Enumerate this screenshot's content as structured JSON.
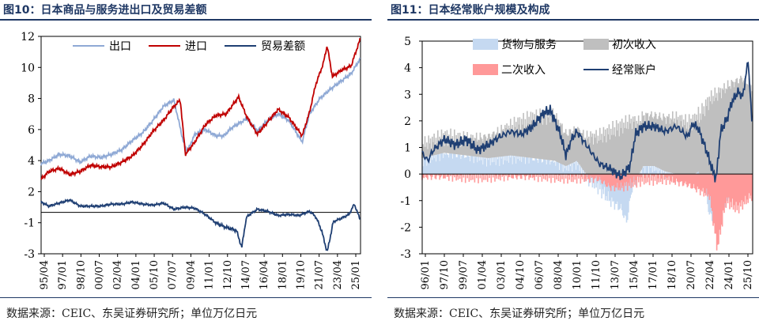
{
  "charts": [
    {
      "fig_title": "图10：日本商品与服务进出口及贸易差额",
      "source": "数据来源：CEIC、东吴证券研究所；单位万亿日元",
      "chart_data": {
        "type": "line",
        "title": "图10：日本商品与服务进出口及贸易差额",
        "xlabel": "",
        "ylabel": "",
        "ylim": [
          -3,
          12
        ],
        "y_ticks": [
          -3,
          -1,
          2,
          4,
          6,
          8,
          10,
          12
        ],
        "y_tick_values": [
          -3,
          -1,
          2,
          4,
          6,
          8,
          10,
          12
        ],
        "x_ticks": [
          "95/04",
          "97/01",
          "98/10",
          "00/07",
          "02/04",
          "04/01",
          "05/10",
          "07/07",
          "09/04",
          "11/01",
          "12/10",
          "14/07",
          "16/04",
          "18/01",
          "19/10",
          "21/07",
          "23/04",
          "25/01"
        ],
        "x_range": [
          1995.25,
          2025.9
        ],
        "legend_position": "top",
        "series": [
          {
            "name": "出口",
            "color": "#8fa9d5",
            "points": [
              [
                1995.25,
                3.8
              ],
              [
                1996,
                4.0
              ],
              [
                1997,
                4.4
              ],
              [
                1998,
                4.3
              ],
              [
                1999,
                3.9
              ],
              [
                2000,
                4.3
              ],
              [
                2001,
                4.2
              ],
              [
                2002,
                4.4
              ],
              [
                2003,
                4.7
              ],
              [
                2004,
                5.3
              ],
              [
                2005,
                5.8
              ],
              [
                2006,
                6.6
              ],
              [
                2007,
                7.5
              ],
              [
                2008,
                7.9
              ],
              [
                2008.9,
                5.2
              ],
              [
                2009.3,
                4.6
              ],
              [
                2010,
                5.7
              ],
              [
                2011,
                6.0
              ],
              [
                2012,
                5.6
              ],
              [
                2012.8,
                5.6
              ],
              [
                2013.5,
                6.1
              ],
              [
                2014.5,
                6.5
              ],
              [
                2015,
                6.7
              ],
              [
                2016,
                5.9
              ],
              [
                2017,
                6.6
              ],
              [
                2018,
                7.0
              ],
              [
                2019,
                6.6
              ],
              [
                2020.3,
                5.2
              ],
              [
                2021,
                7.0
              ],
              [
                2022,
                8.0
              ],
              [
                2023,
                8.6
              ],
              [
                2024,
                9.1
              ],
              [
                2025,
                9.6
              ],
              [
                2025.9,
                10.6
              ]
            ]
          },
          {
            "name": "进口",
            "color": "#c00000",
            "points": [
              [
                1995.25,
                2.8
              ],
              [
                1996,
                3.3
              ],
              [
                1997,
                3.5
              ],
              [
                1998,
                3.1
              ],
              [
                1999,
                3.3
              ],
              [
                2000,
                3.7
              ],
              [
                2001,
                3.6
              ],
              [
                2002,
                3.6
              ],
              [
                2003,
                3.9
              ],
              [
                2004,
                4.3
              ],
              [
                2005,
                5.0
              ],
              [
                2006,
                5.9
              ],
              [
                2007,
                6.6
              ],
              [
                2008,
                7.5
              ],
              [
                2008.6,
                7.9
              ],
              [
                2009.1,
                4.4
              ],
              [
                2010,
                5.2
              ],
              [
                2011,
                6.3
              ],
              [
                2012,
                6.9
              ],
              [
                2013,
                7.0
              ],
              [
                2014.2,
                8.1
              ],
              [
                2015,
                6.8
              ],
              [
                2016,
                5.7
              ],
              [
                2017,
                6.5
              ],
              [
                2018,
                7.3
              ],
              [
                2019,
                6.8
              ],
              [
                2020.3,
                5.6
              ],
              [
                2021,
                7.1
              ],
              [
                2021.6,
                8.9
              ],
              [
                2022.3,
                10.2
              ],
              [
                2022.7,
                11.4
              ],
              [
                2023.2,
                9.4
              ],
              [
                2024,
                9.8
              ],
              [
                2025,
                10.1
              ],
              [
                2025.9,
                11.9
              ]
            ]
          },
          {
            "name": "贸易差额",
            "color": "#1f3f73",
            "points": [
              [
                1995.25,
                1.0
              ],
              [
                1996,
                0.6
              ],
              [
                1997,
                0.9
              ],
              [
                1998,
                1.2
              ],
              [
                1999,
                0.6
              ],
              [
                2000,
                0.6
              ],
              [
                2001,
                0.6
              ],
              [
                2002,
                0.8
              ],
              [
                2003,
                0.8
              ],
              [
                2004,
                1.0
              ],
              [
                2005,
                0.8
              ],
              [
                2006,
                0.7
              ],
              [
                2007,
                0.9
              ],
              [
                2008,
                0.3
              ],
              [
                2009,
                0.5
              ],
              [
                2010,
                0.4
              ],
              [
                2011,
                -0.2
              ],
              [
                2012,
                -1.0
              ],
              [
                2013,
                -1.3
              ],
              [
                2014,
                -1.5
              ],
              [
                2014.5,
                -2.6
              ],
              [
                2015,
                -0.4
              ],
              [
                2016,
                0.3
              ],
              [
                2017,
                0.1
              ],
              [
                2018,
                -0.3
              ],
              [
                2019,
                -0.2
              ],
              [
                2020,
                -0.3
              ],
              [
                2021,
                0.1
              ],
              [
                2021.5,
                -0.3
              ],
              [
                2022.2,
                -1.6
              ],
              [
                2022.7,
                -2.9
              ],
              [
                2023.3,
                -0.9
              ],
              [
                2024,
                -0.6
              ],
              [
                2024.8,
                -0.2
              ],
              [
                2025.3,
                0.8
              ],
              [
                2025.9,
                -0.8
              ]
            ]
          }
        ]
      }
    },
    {
      "fig_title": "图11：日本经常账户规模及构成",
      "source": "数据来源：CEIC、东吴证券研究所；单位万亿日元",
      "chart_data": {
        "type": "area",
        "title": "图11：日本经常账户规模及构成",
        "xlabel": "",
        "ylabel": "",
        "ylim": [
          -3,
          5
        ],
        "y_ticks": [
          -3,
          -2,
          -1,
          0,
          1,
          2,
          3,
          4,
          5
        ],
        "x_ticks": [
          "96/01",
          "97/10",
          "99/07",
          "01/04",
          "03/01",
          "04/10",
          "06/07",
          "08/04",
          "10/01",
          "11/10",
          "13/07",
          "15/04",
          "17/01",
          "18/10",
          "20/07",
          "22/04",
          "24/01",
          "25/10"
        ],
        "x_range": [
          1996.0,
          2025.9
        ],
        "legend_position": "top",
        "series": [
          {
            "name": "货物与服务",
            "color": "#c5d9f1",
            "kind": "bar",
            "points": [
              [
                1996,
                0.6
              ],
              [
                1998,
                0.8
              ],
              [
                2000,
                0.7
              ],
              [
                2002,
                0.6
              ],
              [
                2004,
                0.7
              ],
              [
                2006,
                0.6
              ],
              [
                2008,
                0.5
              ],
              [
                2009,
                0.3
              ],
              [
                2010,
                0.5
              ],
              [
                2011,
                -0.1
              ],
              [
                2012,
                -0.5
              ],
              [
                2013,
                -1.0
              ],
              [
                2014,
                -1.3
              ],
              [
                2014.5,
                -1.8
              ],
              [
                2015,
                -0.5
              ],
              [
                2016,
                0.3
              ],
              [
                2017,
                0.3
              ],
              [
                2018,
                0.1
              ],
              [
                2019,
                0.0
              ],
              [
                2020,
                -0.2
              ],
              [
                2021,
                0.1
              ],
              [
                2021.5,
                -0.4
              ],
              [
                2022,
                -1.5
              ],
              [
                2022.7,
                -2.0
              ],
              [
                2023.2,
                -1.2
              ],
              [
                2024,
                -0.6
              ],
              [
                2025,
                -0.3
              ],
              [
                2025.9,
                -0.2
              ]
            ]
          },
          {
            "name": "初次收入",
            "color": "#bfbfbf",
            "kind": "bar",
            "points": [
              [
                1996,
                0.5
              ],
              [
                1998,
                0.6
              ],
              [
                2000,
                0.6
              ],
              [
                2002,
                0.8
              ],
              [
                2004,
                1.1
              ],
              [
                2006,
                1.5
              ],
              [
                2008,
                1.7
              ],
              [
                2009,
                1.2
              ],
              [
                2010,
                1.2
              ],
              [
                2011,
                1.4
              ],
              [
                2012,
                1.4
              ],
              [
                2013,
                1.6
              ],
              [
                2014,
                1.8
              ],
              [
                2015,
                2.0
              ],
              [
                2016,
                1.9
              ],
              [
                2017,
                1.9
              ],
              [
                2018,
                2.0
              ],
              [
                2019,
                2.1
              ],
              [
                2020,
                1.9
              ],
              [
                2021,
                2.1
              ],
              [
                2022,
                2.8
              ],
              [
                2023,
                3.1
              ],
              [
                2024,
                3.4
              ],
              [
                2025,
                3.6
              ],
              [
                2025.9,
                3.3
              ]
            ]
          },
          {
            "name": "二次收入",
            "color": "#ff9999",
            "kind": "bar",
            "points": [
              [
                1996,
                -0.1
              ],
              [
                2000,
                -0.1
              ],
              [
                2004,
                -0.1
              ],
              [
                2008,
                -0.1
              ],
              [
                2012,
                -0.2
              ],
              [
                2013,
                -0.5
              ],
              [
                2014,
                -0.5
              ],
              [
                2016,
                -0.2
              ],
              [
                2018,
                -0.2
              ],
              [
                2020,
                -0.4
              ],
              [
                2022,
                -0.8
              ],
              [
                2022.7,
                -2.8
              ],
              [
                2023.5,
                -1.0
              ],
              [
                2024.5,
                -1.3
              ],
              [
                2025.9,
                -0.8
              ]
            ]
          },
          {
            "name": "经常账户",
            "color": "#1f3f73",
            "kind": "line",
            "points": [
              [
                1996,
                0.8
              ],
              [
                1996.5,
                0.5
              ],
              [
                1997,
                0.9
              ],
              [
                1998,
                1.3
              ],
              [
                1999,
                1.1
              ],
              [
                2000,
                1.3
              ],
              [
                2001,
                0.9
              ],
              [
                2002,
                1.1
              ],
              [
                2003,
                1.4
              ],
              [
                2004,
                1.6
              ],
              [
                2005,
                1.5
              ],
              [
                2006,
                1.8
              ],
              [
                2007,
                2.3
              ],
              [
                2007.6,
                2.4
              ],
              [
                2008.5,
                1.5
              ],
              [
                2009,
                0.7
              ],
              [
                2009.5,
                1.3
              ],
              [
                2010,
                1.6
              ],
              [
                2011,
                1.0
              ],
              [
                2012,
                0.4
              ],
              [
                2013,
                0.2
              ],
              [
                2014,
                -0.1
              ],
              [
                2014.8,
                0.3
              ],
              [
                2015.3,
                1.5
              ],
              [
                2016,
                1.8
              ],
              [
                2017,
                1.8
              ],
              [
                2018,
                1.6
              ],
              [
                2019,
                1.8
              ],
              [
                2020,
                1.4
              ],
              [
                2020.5,
                1.9
              ],
              [
                2021,
                1.7
              ],
              [
                2021.7,
                0.9
              ],
              [
                2022.3,
                0.1
              ],
              [
                2022.6,
                -0.2
              ],
              [
                2023,
                1.6
              ],
              [
                2023.6,
                2.1
              ],
              [
                2024,
                2.7
              ],
              [
                2024.6,
                3.1
              ],
              [
                2025,
                2.9
              ],
              [
                2025.5,
                4.3
              ],
              [
                2025.9,
                1.4
              ]
            ]
          }
        ]
      }
    }
  ]
}
